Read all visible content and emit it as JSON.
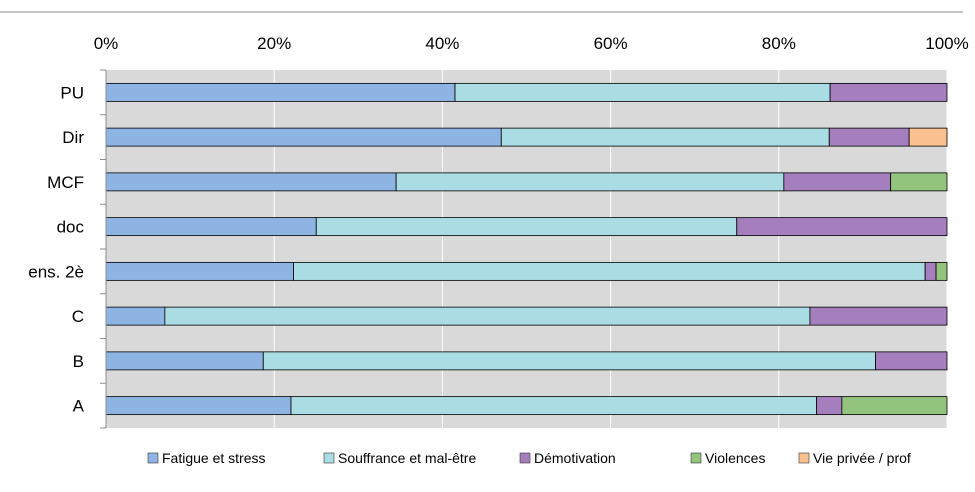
{
  "chart_data": {
    "type": "bar",
    "orientation": "horizontal",
    "stacked": true,
    "percent": true,
    "xlim": [
      0,
      100
    ],
    "xticks": [
      "0%",
      "20%",
      "40%",
      "60%",
      "80%",
      "100%"
    ],
    "categories": [
      "PU",
      "Dir",
      "MCF",
      "doc",
      "ens. 2è",
      "C",
      "B",
      "A"
    ],
    "series": [
      {
        "name": "Fatigue et stress",
        "color": "#8EB4E3",
        "values": [
          41.5,
          47,
          34.5,
          25,
          22.3,
          7,
          18.7,
          22
        ]
      },
      {
        "name": "Souffrance et mal-être",
        "color": "#A9DCE3",
        "values": [
          44.6,
          39,
          46.1,
          50,
          75.1,
          76.7,
          72.8,
          62.5
        ]
      },
      {
        "name": "Démotivation",
        "color": "#A57FBD",
        "values": [
          13.9,
          9.5,
          12.7,
          25,
          1.3,
          16.3,
          8.5,
          3
        ]
      },
      {
        "name": "Violences",
        "color": "#93C47D",
        "values": [
          0,
          0,
          6.7,
          0,
          1.3,
          0,
          0,
          12.5
        ]
      },
      {
        "name": "Vie privée / prof",
        "color": "#FAC090",
        "values": [
          0,
          4.5,
          0,
          0,
          0,
          0,
          0,
          0
        ]
      }
    ],
    "grid": true,
    "legend": "bottom"
  }
}
